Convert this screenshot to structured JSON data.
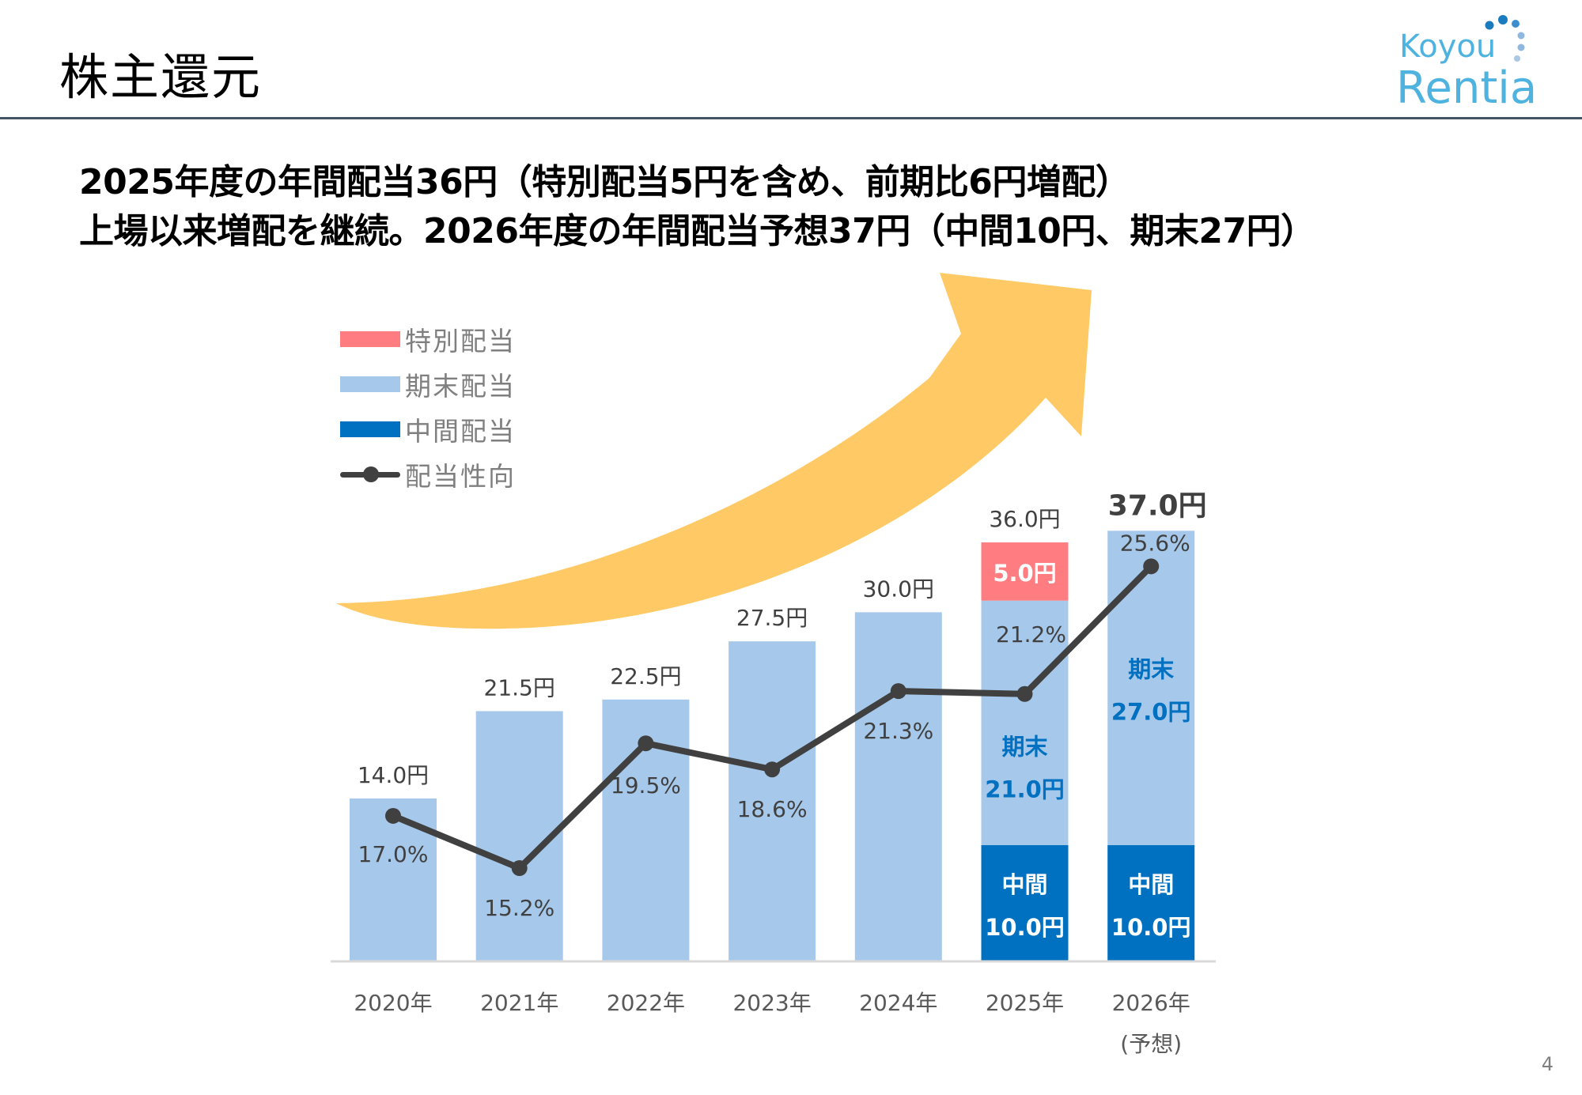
{
  "header": {
    "title": "株主還元",
    "logo_text_top": "Koyou",
    "logo_text_bottom": "Rentia"
  },
  "headline": {
    "line1": "2025年度の年間配当36円（特別配当5円を含め、前期比6円増配）",
    "line2": "上場以来増配を継続。2026年度の年間配当予想37円（中間10円、期末27円）"
  },
  "page_number": "4",
  "colors": {
    "special": "#ff7c80",
    "year_end": "#a6c9eb",
    "interim": "#0070c0",
    "payout_line": "#404040",
    "arrow": "#ffca66",
    "header_rule": "#44546a",
    "logo_light": "#4fb3e0",
    "logo_dark": "#1a7bbf"
  },
  "legend": [
    {
      "key": "special",
      "label": "特別配当"
    },
    {
      "key": "year_end",
      "label": "期末配当"
    },
    {
      "key": "interim",
      "label": "中間配当"
    },
    {
      "key": "payout",
      "label": "配当性向"
    }
  ],
  "chart_data": {
    "type": "bar",
    "stacked": true,
    "title": "",
    "xlabel": "",
    "ylabel": "",
    "unit": "円",
    "categories": [
      "2020年",
      "2021年",
      "2022年",
      "2023年",
      "2024年",
      "2025年",
      "2026年"
    ],
    "category_sublabels": [
      "",
      "",
      "",
      "",
      "",
      "",
      "(予想)"
    ],
    "series": [
      {
        "name": "中間配当",
        "key": "interim",
        "values": [
          0,
          0,
          0,
          0,
          0,
          10.0,
          10.0
        ]
      },
      {
        "name": "期末配当",
        "key": "year_end",
        "values": [
          14.0,
          21.5,
          22.5,
          27.5,
          30.0,
          21.0,
          27.0
        ]
      },
      {
        "name": "特別配当",
        "key": "special",
        "values": [
          0,
          0,
          0,
          0,
          0,
          5.0,
          0
        ]
      }
    ],
    "totals": [
      14.0,
      21.5,
      22.5,
      27.5,
      30.0,
      36.0,
      37.0
    ],
    "total_labels": [
      "14.0円",
      "21.5円",
      "22.5円",
      "27.5円",
      "30.0円",
      "36.0円",
      "37.0円"
    ],
    "segment_labels": {
      "interim": [
        "",
        "",
        "",
        "",
        "",
        "中間|10.0円",
        "中間|10.0円"
      ],
      "year_end": [
        "",
        "",
        "",
        "",
        "",
        "期末|21.0円",
        "期末|27.0円"
      ],
      "special": [
        "",
        "",
        "",
        "",
        "",
        "5.0円",
        ""
      ]
    },
    "line_series": {
      "name": "配当性向",
      "unit": "%",
      "values": [
        17.0,
        15.2,
        19.5,
        18.6,
        21.3,
        21.2,
        25.6
      ],
      "labels": [
        "17.0%",
        "15.2%",
        "19.5%",
        "18.6%",
        "21.3%",
        "21.2%",
        "25.6%"
      ]
    },
    "ylim": [
      0,
      40
    ],
    "grid": false,
    "legend_position": "top-left",
    "decoration": "upward-arrow"
  }
}
